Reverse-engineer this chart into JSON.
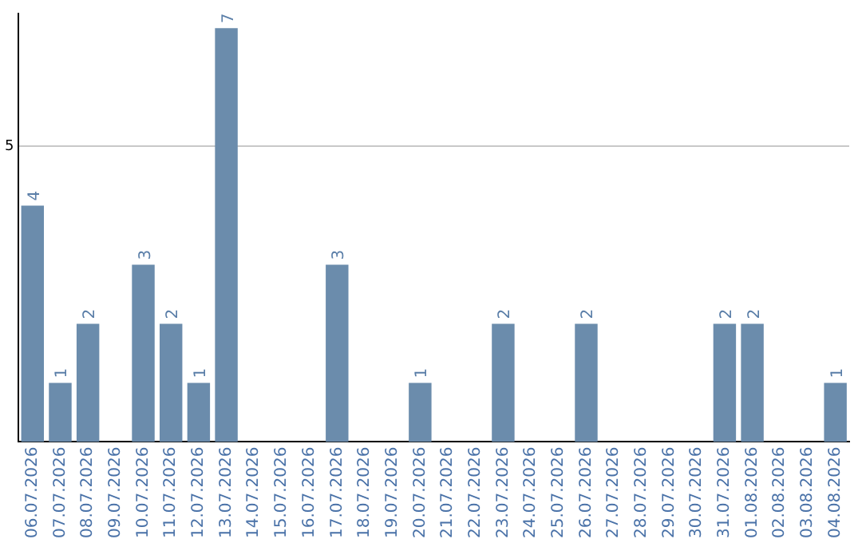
{
  "chart_data": {
    "type": "bar",
    "categories": [
      "06.07.2026",
      "07.07.2026",
      "08.07.2026",
      "09.07.2026",
      "10.07.2026",
      "11.07.2026",
      "12.07.2026",
      "13.07.2026",
      "14.07.2026",
      "15.07.2026",
      "16.07.2026",
      "17.07.2026",
      "18.07.2026",
      "19.07.2026",
      "20.07.2026",
      "21.07.2026",
      "22.07.2026",
      "23.07.2026",
      "24.07.2026",
      "25.07.2026",
      "26.07.2026",
      "27.07.2026",
      "28.07.2026",
      "29.07.2026",
      "30.07.2026",
      "31.07.2026",
      "01.08.2026",
      "02.08.2026",
      "03.08.2026",
      "04.08.2026"
    ],
    "values": [
      4,
      1,
      2,
      0,
      3,
      2,
      1,
      7,
      0,
      0,
      0,
      3,
      0,
      0,
      1,
      0,
      0,
      2,
      0,
      0,
      2,
      0,
      0,
      0,
      0,
      2,
      2,
      0,
      0,
      1
    ],
    "value_labels": [
      "4",
      "1",
      "2",
      null,
      "3",
      "2",
      "1",
      "7",
      null,
      null,
      null,
      "3",
      null,
      null,
      "1",
      null,
      null,
      "2",
      null,
      null,
      "2",
      null,
      null,
      null,
      null,
      "2",
      "2",
      null,
      null,
      "1"
    ],
    "color": "#6b8cac",
    "ylim": [
      0,
      7.25
    ],
    "yticks": [
      5
    ],
    "grid": "y",
    "legend": false
  }
}
